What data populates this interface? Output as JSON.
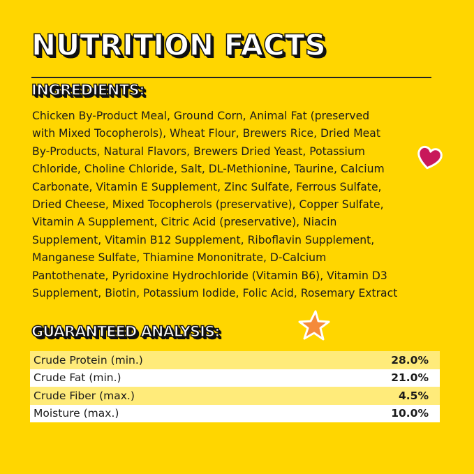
{
  "title": "NUTRITION FACTS",
  "ingredients": {
    "heading": "INGREDIENTS:",
    "lines": [
      "Chicken By-Product Meal, Ground Corn, Animal Fat (preserved",
      "with Mixed Tocopherols), Wheat Flour, Brewers Rice, Dried Meat",
      "By-Products, Natural Flavors, Brewers Dried Yeast, Potassium",
      "Chloride, Choline Chloride, Salt, DL-Methionine, Taurine, Calcium",
      "Carbonate, Vitamin E Supplement, Zinc Sulfate, Ferrous Sulfate,",
      "Dried Cheese, Mixed Tocopherols (preservative), Copper Sulfate,",
      "Vitamin A Supplement, Citric Acid (preservative), Niacin",
      "Supplement, Vitamin B12 Supplement, Riboflavin Supplement,",
      "Manganese Sulfate, Thiamine Mononitrate, D-Calcium",
      "Pantothenate, Pyridoxine Hydrochloride (Vitamin B6), Vitamin D3",
      "Supplement, Biotin, Potassium Iodide, Folic Acid, Rosemary Extract"
    ]
  },
  "analysis": {
    "heading": "GUARANTEED ANALYSIS:",
    "rows": [
      {
        "label": "Crude Protein (min.)",
        "value": "28.0%"
      },
      {
        "label": "Crude Fat (min.)",
        "value": "21.0%"
      },
      {
        "label": "Crude Fiber (max.)",
        "value": "4.5%"
      },
      {
        "label": "Moisture (max.)",
        "value": "10.0%"
      }
    ]
  },
  "colors": {
    "background": "#FFD600",
    "heart": "#C8185A",
    "star": "#F58A3A",
    "row_alt": "#FFEB7A"
  },
  "icons": [
    "heart-icon",
    "star-icon"
  ]
}
